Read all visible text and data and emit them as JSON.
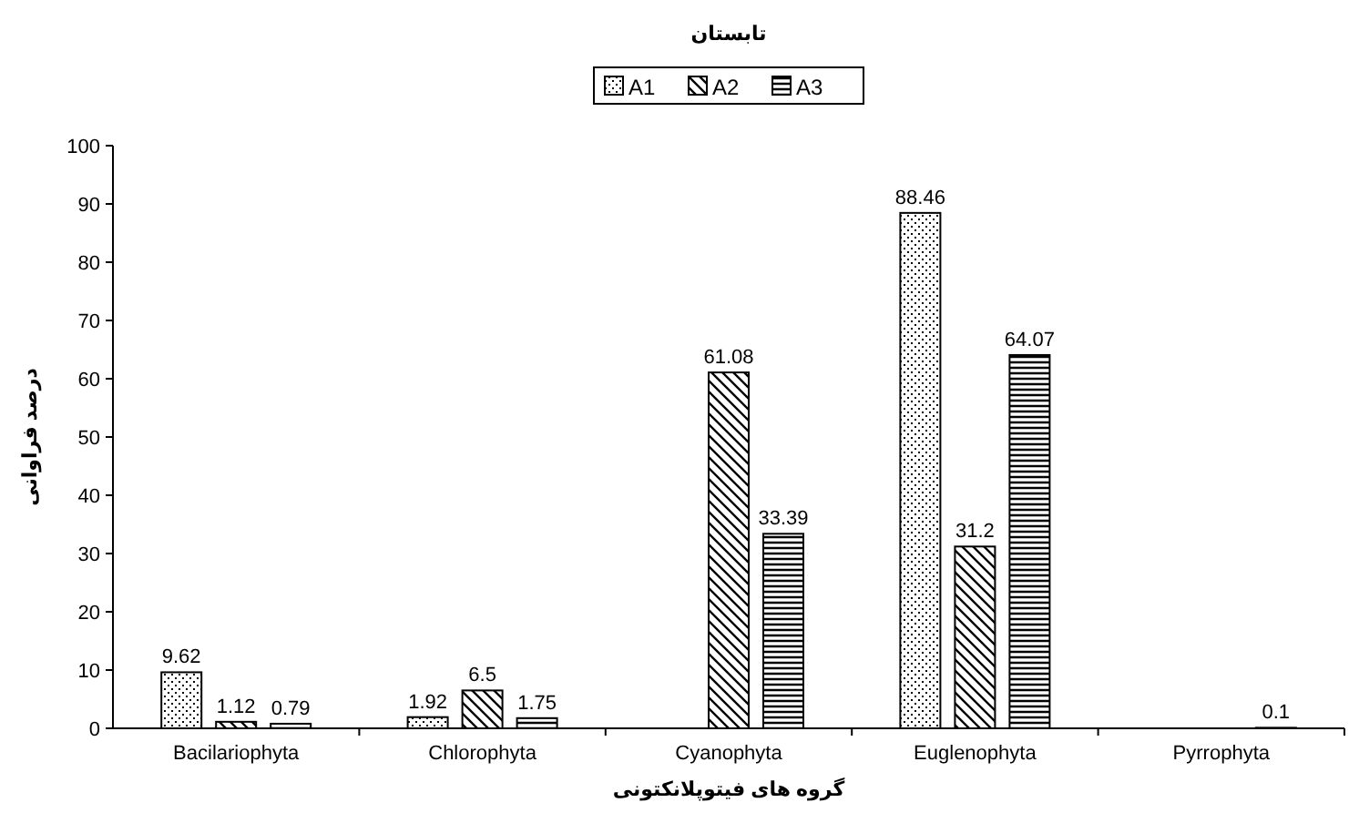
{
  "chart_data": {
    "type": "bar",
    "title": "تابستان",
    "xlabel": "گروه های فیتوپلانکتونی",
    "ylabel": "درصد فراوانی",
    "categories": [
      "Bacilariophyta",
      "Chlorophyta",
      "Cyanophyta",
      "Euglenophyta",
      "Pyrrophyta"
    ],
    "series": [
      {
        "name": "A1",
        "color": "#000000",
        "values": [
          9.62,
          1.92,
          null,
          88.46,
          null
        ]
      },
      {
        "name": "A2",
        "color": "#000000",
        "values": [
          1.12,
          6.5,
          61.08,
          31.2,
          null
        ]
      },
      {
        "name": "A3",
        "color": "#000000",
        "values": [
          0.79,
          1.75,
          33.39,
          64.07,
          0.1
        ]
      }
    ],
    "ylim": [
      0,
      100
    ],
    "yticks": [
      0,
      10,
      20,
      30,
      40,
      50,
      60,
      70,
      80,
      90,
      100
    ],
    "grid": false,
    "legend": "top",
    "data_labels": true
  }
}
